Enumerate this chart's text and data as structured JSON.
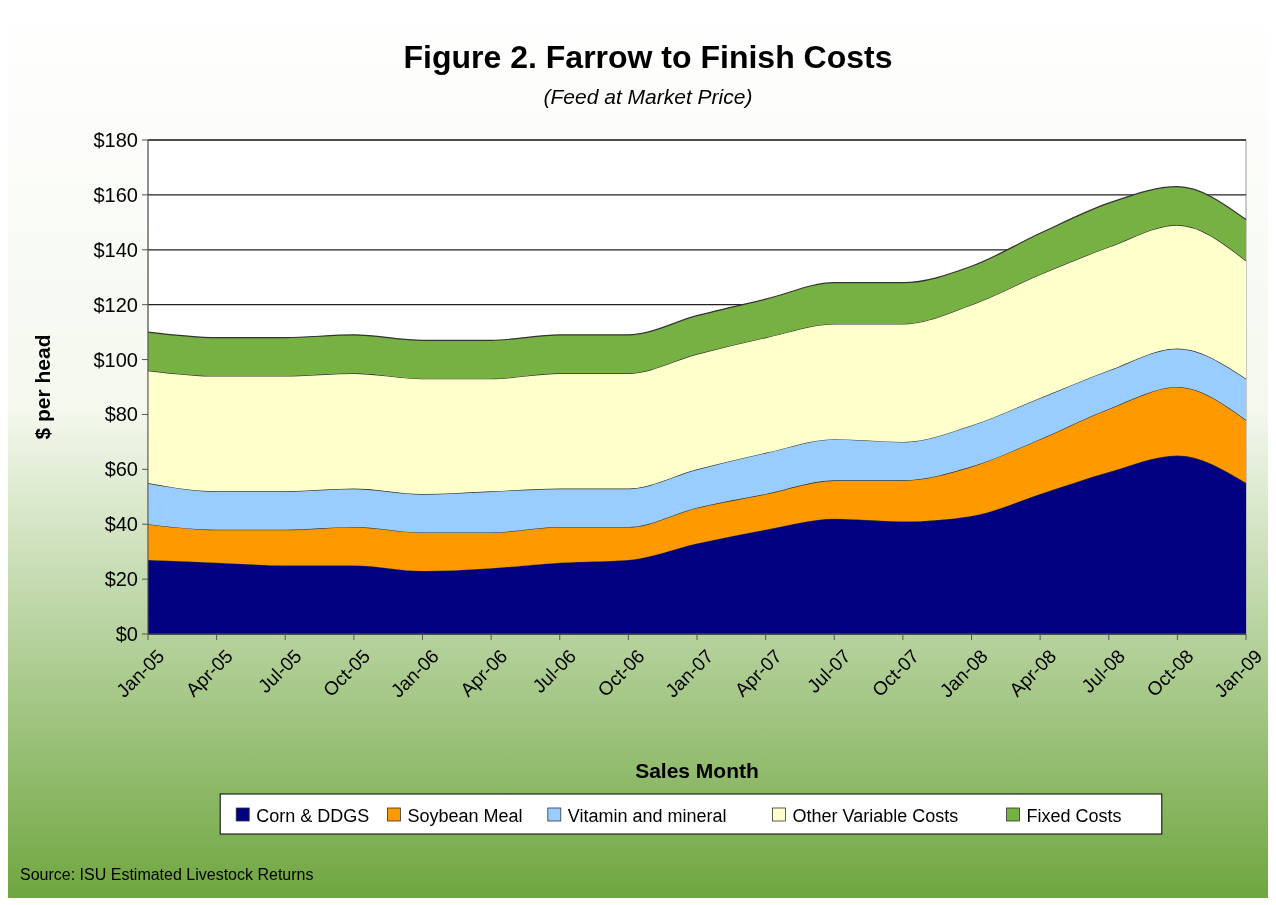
{
  "chart_data": {
    "type": "area",
    "stacked": true,
    "title": "Figure 2. Farrow to Finish Costs",
    "subtitle": "(Feed at Market Price)",
    "xlabel": "Sales Month",
    "ylabel": "$ per head",
    "categories": [
      "Jan-05",
      "Apr-05",
      "Jul-05",
      "Oct-05",
      "Jan-06",
      "Apr-06",
      "Jul-06",
      "Oct-06",
      "Jan-07",
      "Apr-07",
      "Jul-07",
      "Oct-07",
      "Jan-08",
      "Apr-08",
      "Jul-08",
      "Oct-08",
      "Jan-09"
    ],
    "series": [
      {
        "name": "Corn & DDGS",
        "color": "#000080",
        "values": [
          27,
          26,
          25,
          25,
          23,
          24,
          26,
          27,
          33,
          38,
          42,
          41,
          43,
          51,
          59,
          65,
          55
        ]
      },
      {
        "name": "Soybean Meal",
        "color": "#ff9900",
        "values": [
          13,
          12,
          13,
          14,
          14,
          13,
          13,
          12,
          13,
          13,
          14,
          15,
          18,
          20,
          23,
          25,
          23
        ]
      },
      {
        "name": "Vitamin and mineral",
        "color": "#99ccff",
        "values": [
          15,
          14,
          14,
          14,
          14,
          15,
          14,
          14,
          14,
          15,
          15,
          14,
          15,
          15,
          14,
          14,
          15
        ]
      },
      {
        "name": "Other Variable Costs",
        "color": "#ffffcc",
        "values": [
          41,
          42,
          42,
          42,
          42,
          41,
          42,
          42,
          42,
          42,
          42,
          43,
          44,
          45,
          45,
          45,
          43
        ]
      },
      {
        "name": "Fixed Costs",
        "color": "#77b043",
        "values": [
          14,
          14,
          14,
          14,
          14,
          14,
          14,
          14,
          14,
          14,
          15,
          15,
          14,
          15,
          16,
          14,
          15
        ]
      }
    ],
    "ylim": [
      0,
      180
    ],
    "yticks": [
      {
        "value": 0,
        "label": "$0"
      },
      {
        "value": 20,
        "label": "$20"
      },
      {
        "value": 40,
        "label": "$40"
      },
      {
        "value": 60,
        "label": "$60"
      },
      {
        "value": 80,
        "label": "$80"
      },
      {
        "value": 100,
        "label": "$100"
      },
      {
        "value": 120,
        "label": "$120"
      },
      {
        "value": 140,
        "label": "$140"
      },
      {
        "value": 160,
        "label": "$160"
      },
      {
        "value": 180,
        "label": "$180"
      }
    ],
    "grid": "y",
    "legend": "bottom",
    "annotations": [
      "Source: ISU Estimated Livestock Returns"
    ]
  }
}
